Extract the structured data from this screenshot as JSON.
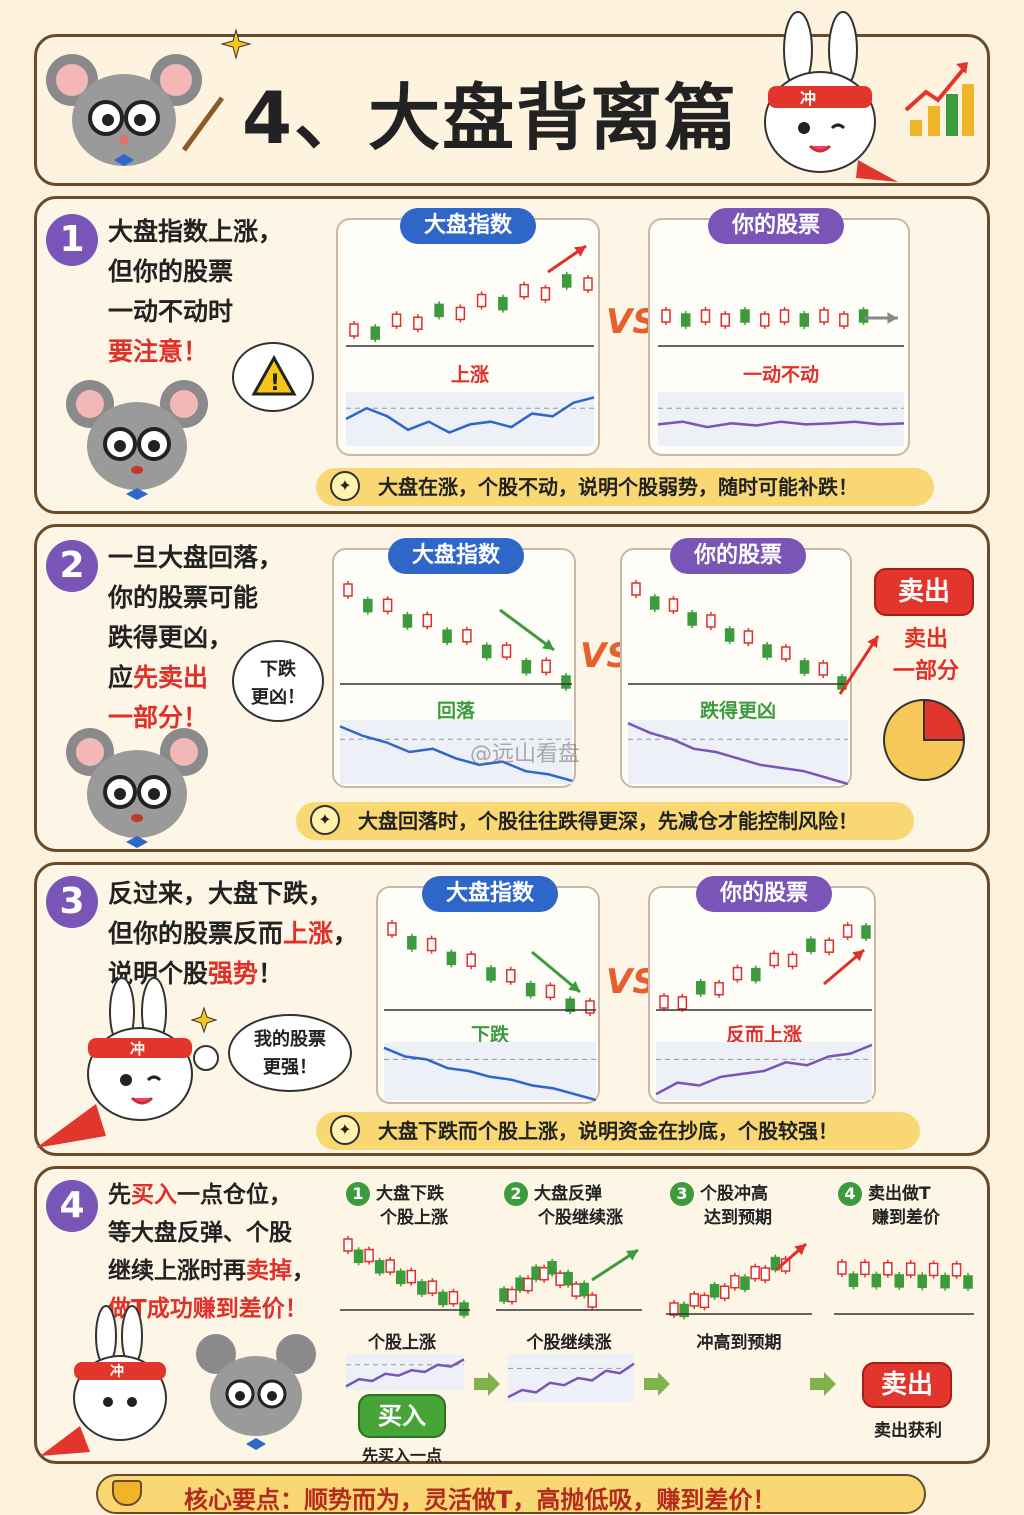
{
  "header": {
    "title": "4、大盘背离篇",
    "bunny_badge": "冲"
  },
  "sections": [
    {
      "num": "1",
      "text_lines": [
        "大盘指数上涨，",
        "但你的股票",
        "一动不动时",
        "要注意！"
      ],
      "left_card": {
        "title": "大盘指数",
        "label": "上涨"
      },
      "right_card": {
        "title": "你的股票",
        "label": "一动不动"
      },
      "vs": "VS",
      "tip": "大盘在涨，个股不动，说明个股弱势，随时可能补跌！"
    },
    {
      "num": "2",
      "text_lines": [
        "一旦大盘回落，",
        "你的股票可能",
        "跌得更凶，"
      ],
      "text_line_red_a": "应",
      "text_line_red_b": "先卖出",
      "text_line_red_c": "一部分！",
      "bubble": [
        "下跌",
        "更凶！"
      ],
      "left_card": {
        "title": "大盘指数",
        "label": "回落"
      },
      "right_card": {
        "title": "你的股票",
        "label": "跌得更凶"
      },
      "vs": "VS",
      "sell_button": "卖出",
      "sell_note": [
        "卖出",
        "一部分"
      ],
      "watermark": "@远山看盘",
      "tip": "大盘回落时，个股往往跌得更深，先减仓才能控制风险！"
    },
    {
      "num": "3",
      "line1": "反过来，大盘下跌，",
      "line2a": "但你的股票反而",
      "line2b": "上涨",
      "line2c": "，",
      "line3a": "说明个股",
      "line3b": "强势",
      "line3c": "！",
      "bubble": [
        "我的股票",
        "更强！"
      ],
      "left_card": {
        "title": "大盘指数",
        "label": "下跌"
      },
      "right_card": {
        "title": "你的股票",
        "label": "反而上涨"
      },
      "vs": "VS",
      "tip": "大盘下跌而个股上涨，说明资金在抄底，个股较强！"
    },
    {
      "num": "4",
      "line1a": "先",
      "line1b": "买入",
      "line1c": "一点仓位，",
      "line2": "等大盘反弹、个股",
      "line3a": "继续上涨时再",
      "line3b": "卖掉",
      "line3c": "，",
      "line4": "做T成功赚到差价！",
      "steps": [
        {
          "n": "1",
          "title": [
            "大盘下跌",
            "个股上涨"
          ],
          "label": "个股上涨",
          "button": "买入",
          "note": "先买入一点"
        },
        {
          "n": "2",
          "title": [
            "大盘反弹",
            "个股继续涨"
          ],
          "label": "个股继续涨"
        },
        {
          "n": "3",
          "title": [
            "个股冲高",
            "达到预期"
          ],
          "label": "冲高到预期"
        },
        {
          "n": "4",
          "title": [
            "卖出做T",
            "赚到差价"
          ],
          "button": "卖出",
          "note": "卖出获利"
        }
      ]
    }
  ],
  "footer": {
    "text": "核心要点：顺势而为，灵活做T，高抛低吸，赚到差价！"
  },
  "colors": {
    "accent_red": "#e0302a",
    "purple": "#7a55b8",
    "blue": "#2f66c9",
    "up_red": "#e0302a",
    "down_green": "#3c9b3c"
  }
}
